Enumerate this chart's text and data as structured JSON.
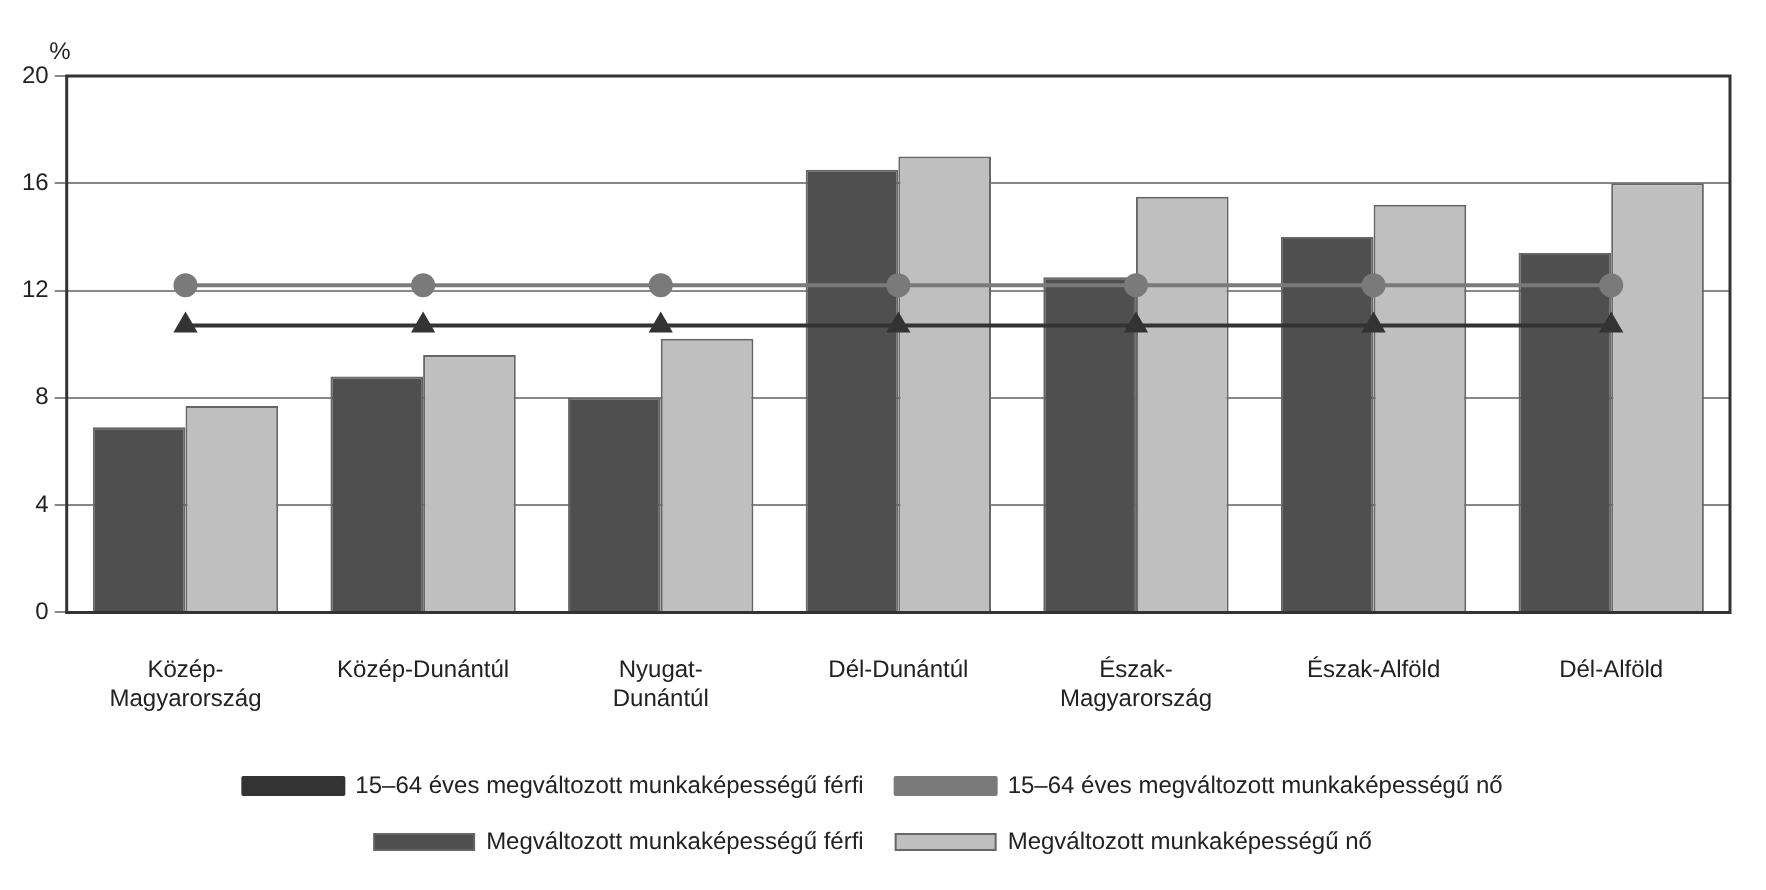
{
  "chart_data": {
    "type": "bar",
    "ylabel": "%",
    "categories": [
      "Közép-Magyarország",
      "Közép-Dunántúl",
      "Nyugat-Dunántúl",
      "Dél-Dunántúl",
      "Észak-Magyarország",
      "Észak-Alföld",
      "Dél-Alföld"
    ],
    "series": [
      {
        "name": "Megváltozott munkaképességű férfi",
        "color": "#4f4f4f",
        "values": [
          6.9,
          8.8,
          8.0,
          16.5,
          12.5,
          14.0,
          13.4
        ]
      },
      {
        "name": "Megváltozott munkaképességű nő",
        "color": "#bfbfbf",
        "values": [
          7.7,
          9.6,
          10.2,
          17.0,
          15.5,
          15.2,
          16.0
        ]
      },
      {
        "name": "15–64 éves megváltozott munkaképességű férfi",
        "type": "line",
        "marker": "triangle",
        "color": "#333333",
        "values": [
          10.7,
          10.7,
          10.7,
          10.7,
          10.7,
          10.7,
          10.7
        ]
      },
      {
        "name": "15–64 éves megváltozott munkaképességű nő",
        "type": "line",
        "marker": "circle",
        "color": "#7a7a7a",
        "values": [
          12.2,
          12.2,
          12.2,
          12.2,
          12.2,
          12.2,
          12.2
        ]
      }
    ],
    "ylim": [
      0,
      20
    ],
    "yticks": [
      0,
      4,
      8,
      12,
      16,
      20
    ],
    "grid": "y",
    "legend": "bottom"
  }
}
